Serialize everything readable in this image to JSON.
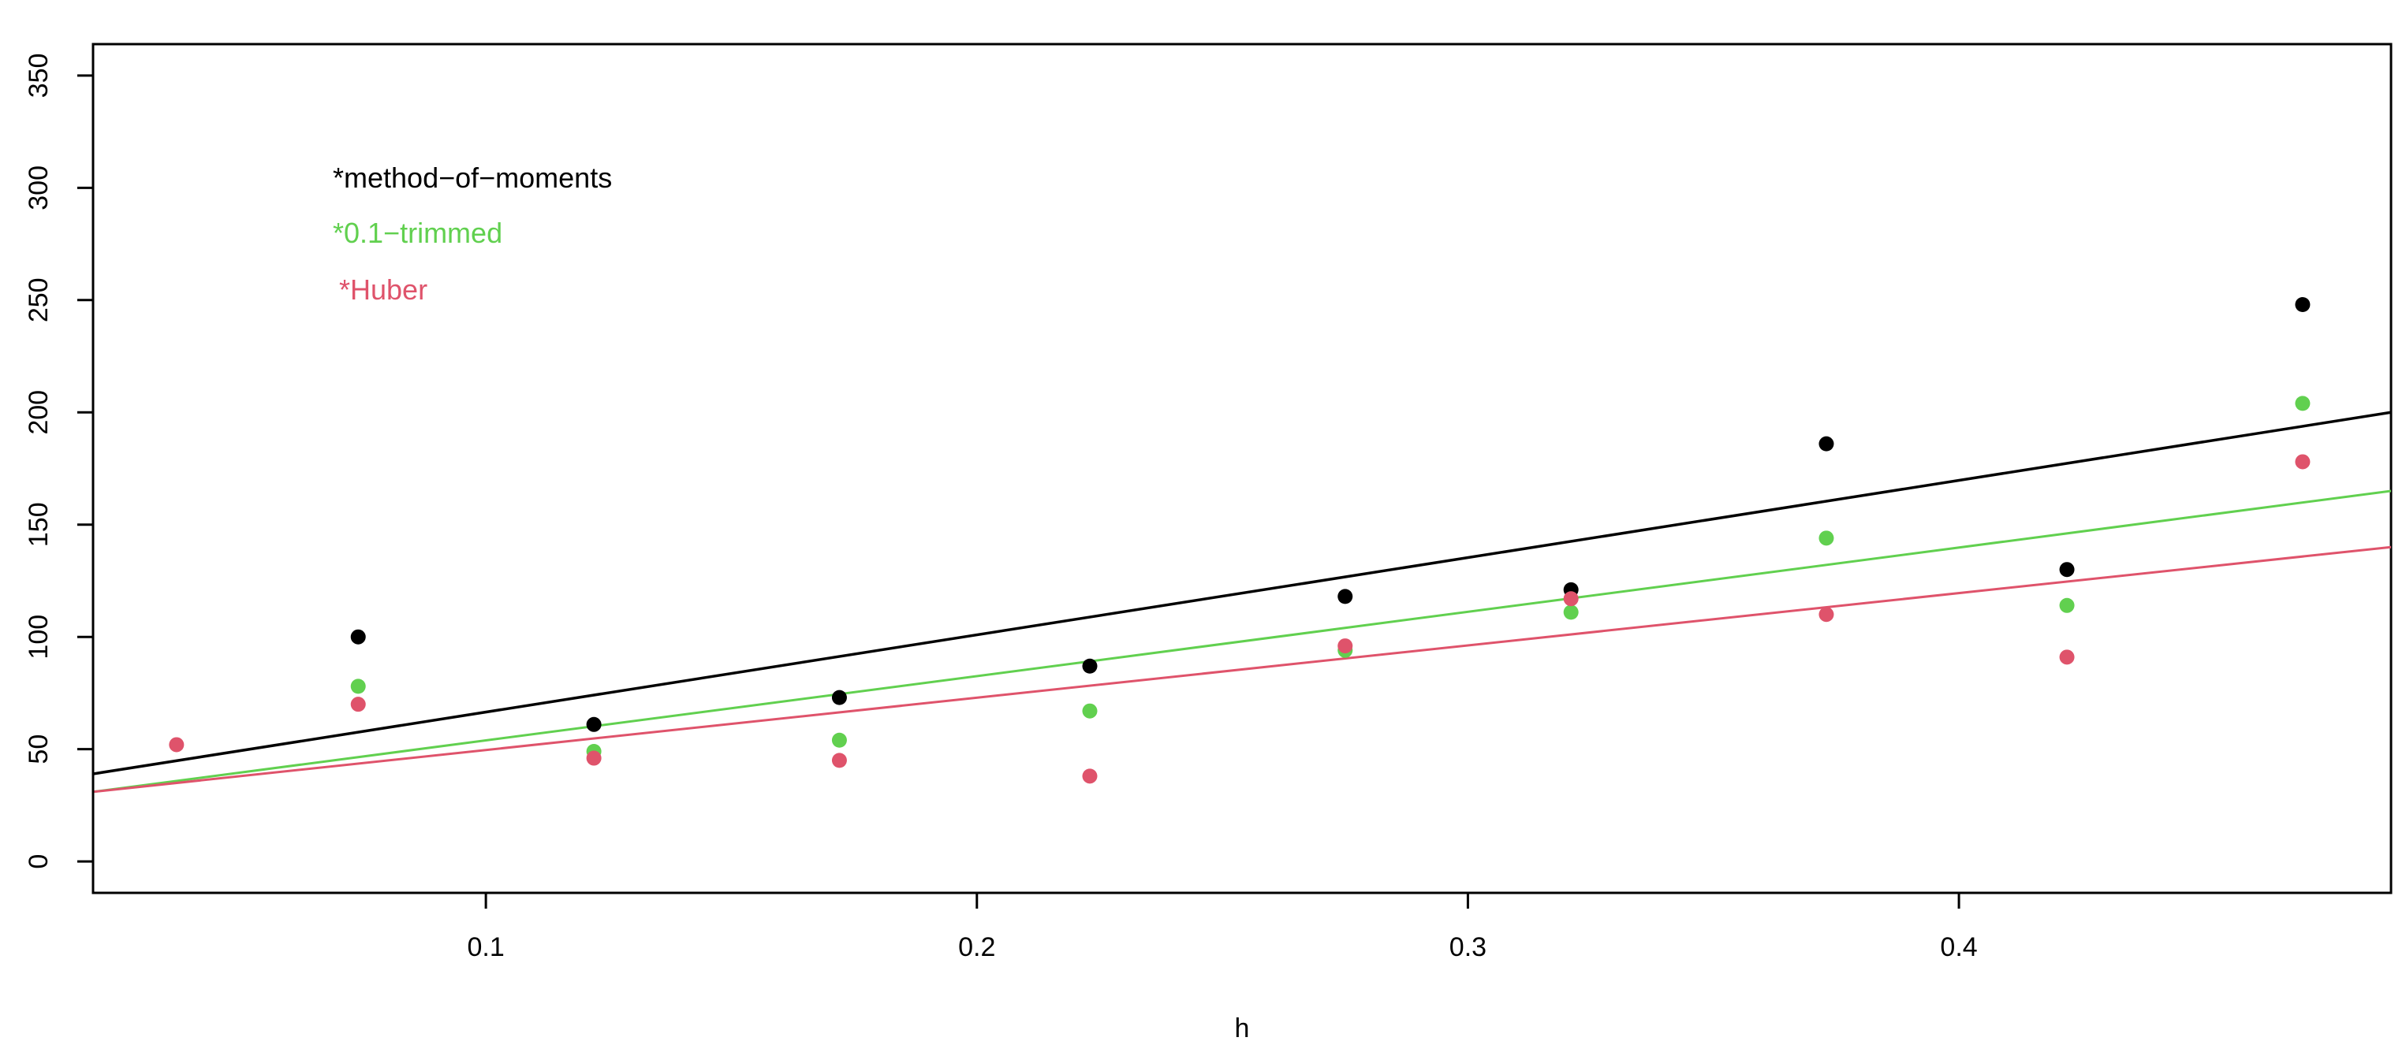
{
  "chart_data": {
    "type": "scatter",
    "title": "",
    "xlabel": "h",
    "ylabel": "",
    "xlim": [
      0.02,
      0.488
    ],
    "ylim": [
      -14,
      364
    ],
    "x_ticks": [
      0.1,
      0.2,
      0.3,
      0.4
    ],
    "x_tick_labels": [
      "0.1",
      "0.2",
      "0.3",
      "0.4"
    ],
    "y_ticks": [
      0,
      50,
      100,
      150,
      200,
      250,
      300,
      350
    ],
    "y_tick_labels": [
      "0",
      "50",
      "100",
      "150",
      "200",
      "250",
      "300",
      "350"
    ],
    "grid": false,
    "legend_placement": "top-left",
    "legend": [
      {
        "label": "*method−of−moments",
        "color": "#000000"
      },
      {
        "label": "*0.1−trimmed",
        "color": "#61D04F"
      },
      {
        "label": "*Huber",
        "color": "#DF536B"
      }
    ],
    "series": [
      {
        "color": "#000000",
        "points": [
          {
            "x": 0.074,
            "y": 100
          },
          {
            "x": 0.122,
            "y": 61
          },
          {
            "x": 0.172,
            "y": 73
          },
          {
            "x": 0.223,
            "y": 87
          },
          {
            "x": 0.275,
            "y": 118
          },
          {
            "x": 0.321,
            "y": 121
          },
          {
            "x": 0.373,
            "y": 186
          },
          {
            "x": 0.422,
            "y": 130
          },
          {
            "x": 0.47,
            "y": 248
          }
        ],
        "fit_line": [
          {
            "x": 0.02,
            "y": 39
          },
          {
            "x": 0.488,
            "y": 200
          }
        ]
      },
      {
        "color": "#61D04F",
        "points": [
          {
            "x": 0.074,
            "y": 78
          },
          {
            "x": 0.122,
            "y": 49
          },
          {
            "x": 0.172,
            "y": 54
          },
          {
            "x": 0.223,
            "y": 67
          },
          {
            "x": 0.275,
            "y": 94
          },
          {
            "x": 0.321,
            "y": 111
          },
          {
            "x": 0.373,
            "y": 144
          },
          {
            "x": 0.422,
            "y": 114
          },
          {
            "x": 0.47,
            "y": 204
          }
        ],
        "fit_line": [
          {
            "x": 0.02,
            "y": 31
          },
          {
            "x": 0.488,
            "y": 165
          }
        ]
      },
      {
        "color": "#DF536B",
        "points": [
          {
            "x": 0.037,
            "y": 52
          },
          {
            "x": 0.074,
            "y": 70
          },
          {
            "x": 0.122,
            "y": 46
          },
          {
            "x": 0.172,
            "y": 45
          },
          {
            "x": 0.223,
            "y": 38
          },
          {
            "x": 0.275,
            "y": 96
          },
          {
            "x": 0.321,
            "y": 117
          },
          {
            "x": 0.373,
            "y": 110
          },
          {
            "x": 0.422,
            "y": 91
          },
          {
            "x": 0.47,
            "y": 178
          }
        ],
        "fit_line": [
          {
            "x": 0.02,
            "y": 31
          },
          {
            "x": 0.488,
            "y": 140
          }
        ]
      }
    ]
  }
}
